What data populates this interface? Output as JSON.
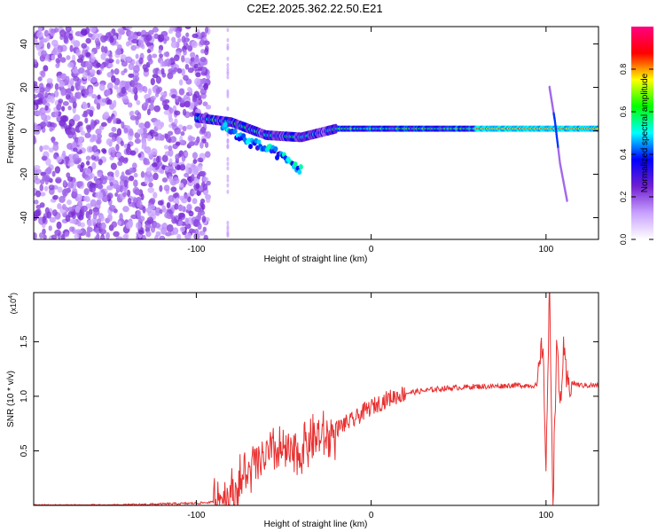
{
  "title": "C2E2.2025.362.22.50.E21",
  "chart_data": [
    {
      "type": "heatmap",
      "xlabel": "Height of straight line (km)",
      "ylabel": "Frequency (Hz)",
      "xlim": [
        -193,
        130
      ],
      "ylim": [
        -50,
        48
      ],
      "xticks": [
        -100,
        0,
        100
      ],
      "yticks": [
        -40,
        -20,
        0,
        20,
        40
      ],
      "colorbar": {
        "label": "Normalized spectral amplitude",
        "ticks": [
          0.0,
          0.2,
          0.4,
          0.6,
          0.8
        ],
        "range": [
          0,
          1
        ],
        "colors": [
          "#ffffff",
          "#c8a0ff",
          "#7020d0",
          "#0000ff",
          "#00ffff",
          "#00ff00",
          "#ffff00",
          "#ff0000",
          "#ff0080"
        ]
      },
      "features": [
        {
          "name": "noise-region",
          "x_range": [
            -193,
            -93
          ],
          "y_range": [
            -50,
            48
          ],
          "amplitude": [
            0.1,
            0.25
          ]
        },
        {
          "name": "signal-track",
          "points": [
            [
              -100,
              6
            ],
            [
              -80,
              4
            ],
            [
              -60,
              -2
            ],
            [
              -40,
              -3
            ],
            [
              -20,
              1
            ],
            [
              0,
              1
            ],
            [
              50,
              1
            ],
            [
              100,
              1
            ],
            [
              130,
              1
            ]
          ]
        },
        {
          "name": "diagonal-streak",
          "points": [
            [
              -85,
              2
            ],
            [
              -70,
              -5
            ],
            [
              -55,
              -10
            ],
            [
              -40,
              -18
            ]
          ]
        },
        {
          "name": "vertical-streak",
          "points": [
            [
              102,
              20
            ],
            [
              105,
              5
            ],
            [
              108,
              -15
            ],
            [
              112,
              -32
            ]
          ]
        }
      ]
    },
    {
      "type": "line",
      "xlabel": "Height of straight line (km)",
      "ylabel": "SNR (10 * v/v)",
      "yscale_label": "(x10",
      "yscale_exp": "4",
      "xlim": [
        -193,
        130
      ],
      "ylim": [
        0,
        1.95
      ],
      "xticks": [
        -100,
        0,
        100
      ],
      "yticks": [
        0.5,
        1.0,
        1.5
      ],
      "color": "#e83030",
      "x": [
        -193,
        -150,
        -100,
        -90,
        -85,
        -80,
        -75,
        -70,
        -65,
        -60,
        -55,
        -50,
        -45,
        -40,
        -35,
        -30,
        -25,
        -20,
        -15,
        -10,
        -5,
        0,
        10,
        20,
        30,
        40,
        50,
        60,
        70,
        80,
        90,
        95,
        98,
        100,
        102,
        104,
        106,
        108,
        110,
        112,
        115,
        120,
        125,
        130
      ],
      "y": [
        0.0,
        0.0,
        0.02,
        0.03,
        0.08,
        0.1,
        0.2,
        0.3,
        0.38,
        0.45,
        0.48,
        0.5,
        0.45,
        0.5,
        0.6,
        0.62,
        0.6,
        0.7,
        0.75,
        0.78,
        0.85,
        0.9,
        0.98,
        1.03,
        1.05,
        1.07,
        1.08,
        1.09,
        1.09,
        1.1,
        1.1,
        1.1,
        1.5,
        0.4,
        1.95,
        0.05,
        1.5,
        0.9,
        1.4,
        1.1,
        1.12,
        1.1,
        1.1,
        1.1
      ]
    }
  ]
}
